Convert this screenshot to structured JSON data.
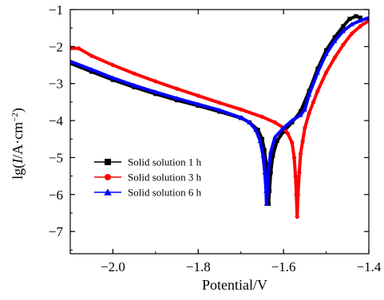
{
  "chart_data": {
    "type": "line",
    "xlabel": "Potential/V",
    "ylabel": "lg(I/A·cm⁻²)",
    "xlim": [
      -2.1,
      -1.4
    ],
    "ylim": [
      -7.6,
      -1.0
    ],
    "xticks": [
      -2.0,
      -1.8,
      -1.6,
      -1.4
    ],
    "xtick_labels": [
      "−2.0",
      "−1.8",
      "−1.6",
      "−1.4"
    ],
    "yticks": [
      -7,
      -6,
      -5,
      -4,
      -3,
      -2,
      -1
    ],
    "ytick_labels": [
      "−7",
      "−6",
      "−5",
      "−4",
      "−3",
      "−2",
      "−1"
    ],
    "legend_position": "lower-left",
    "series": [
      {
        "name": "Solid solution 1 h",
        "color": "#000000",
        "marker": "square",
        "points": [
          [
            -2.1,
            -2.45
          ],
          [
            -2.05,
            -2.68
          ],
          [
            -2.0,
            -2.9
          ],
          [
            -1.95,
            -3.1
          ],
          [
            -1.9,
            -3.28
          ],
          [
            -1.85,
            -3.45
          ],
          [
            -1.8,
            -3.6
          ],
          [
            -1.75,
            -3.76
          ],
          [
            -1.7,
            -3.93
          ],
          [
            -1.68,
            -4.05
          ],
          [
            -1.66,
            -4.25
          ],
          [
            -1.65,
            -4.5
          ],
          [
            -1.645,
            -4.8
          ],
          [
            -1.64,
            -5.2
          ],
          [
            -1.637,
            -5.7
          ],
          [
            -1.635,
            -6.25
          ],
          [
            -1.633,
            -5.9
          ],
          [
            -1.63,
            -5.4
          ],
          [
            -1.625,
            -4.95
          ],
          [
            -1.615,
            -4.55
          ],
          [
            -1.6,
            -4.3
          ],
          [
            -1.58,
            -4.05
          ],
          [
            -1.56,
            -3.75
          ],
          [
            -1.54,
            -3.2
          ],
          [
            -1.52,
            -2.6
          ],
          [
            -1.5,
            -2.1
          ],
          [
            -1.48,
            -1.75
          ],
          [
            -1.46,
            -1.45
          ],
          [
            -1.445,
            -1.25
          ],
          [
            -1.43,
            -1.18
          ],
          [
            -1.42,
            -1.22
          ]
        ]
      },
      {
        "name": "Solid solution 3 h",
        "color": "#ff0000",
        "marker": "circle",
        "points": [
          [
            -2.1,
            -2.05
          ],
          [
            -2.08,
            -2.05
          ],
          [
            -2.05,
            -2.25
          ],
          [
            -2.0,
            -2.5
          ],
          [
            -1.95,
            -2.73
          ],
          [
            -1.9,
            -2.94
          ],
          [
            -1.85,
            -3.14
          ],
          [
            -1.8,
            -3.33
          ],
          [
            -1.75,
            -3.52
          ],
          [
            -1.7,
            -3.7
          ],
          [
            -1.65,
            -3.9
          ],
          [
            -1.62,
            -4.05
          ],
          [
            -1.6,
            -4.2
          ],
          [
            -1.59,
            -4.35
          ],
          [
            -1.58,
            -4.6
          ],
          [
            -1.575,
            -5.0
          ],
          [
            -1.572,
            -5.5
          ],
          [
            -1.57,
            -6.0
          ],
          [
            -1.568,
            -6.6
          ],
          [
            -1.566,
            -6.0
          ],
          [
            -1.563,
            -5.4
          ],
          [
            -1.56,
            -4.9
          ],
          [
            -1.555,
            -4.55
          ],
          [
            -1.55,
            -4.2
          ],
          [
            -1.54,
            -3.8
          ],
          [
            -1.53,
            -3.5
          ],
          [
            -1.52,
            -3.2
          ],
          [
            -1.5,
            -2.7
          ],
          [
            -1.48,
            -2.3
          ],
          [
            -1.46,
            -1.95
          ],
          [
            -1.44,
            -1.65
          ],
          [
            -1.42,
            -1.45
          ],
          [
            -1.4,
            -1.3
          ]
        ]
      },
      {
        "name": "Solid solution 6 h",
        "color": "#0000ff",
        "marker": "triangle",
        "points": [
          [
            -2.1,
            -2.4
          ],
          [
            -2.05,
            -2.62
          ],
          [
            -2.0,
            -2.85
          ],
          [
            -1.95,
            -3.05
          ],
          [
            -1.9,
            -3.23
          ],
          [
            -1.85,
            -3.4
          ],
          [
            -1.8,
            -3.56
          ],
          [
            -1.75,
            -3.72
          ],
          [
            -1.7,
            -3.92
          ],
          [
            -1.68,
            -4.05
          ],
          [
            -1.665,
            -4.25
          ],
          [
            -1.655,
            -4.55
          ],
          [
            -1.648,
            -4.95
          ],
          [
            -1.644,
            -5.4
          ],
          [
            -1.641,
            -5.9
          ],
          [
            -1.64,
            -6.25
          ],
          [
            -1.638,
            -5.9
          ],
          [
            -1.635,
            -5.3
          ],
          [
            -1.63,
            -4.85
          ],
          [
            -1.62,
            -4.45
          ],
          [
            -1.6,
            -4.2
          ],
          [
            -1.58,
            -4.0
          ],
          [
            -1.56,
            -3.85
          ],
          [
            -1.55,
            -3.7
          ],
          [
            -1.54,
            -3.3
          ],
          [
            -1.52,
            -2.7
          ],
          [
            -1.5,
            -2.2
          ],
          [
            -1.48,
            -1.85
          ],
          [
            -1.46,
            -1.58
          ],
          [
            -1.44,
            -1.4
          ],
          [
            -1.42,
            -1.3
          ],
          [
            -1.4,
            -1.22
          ]
        ]
      }
    ]
  }
}
